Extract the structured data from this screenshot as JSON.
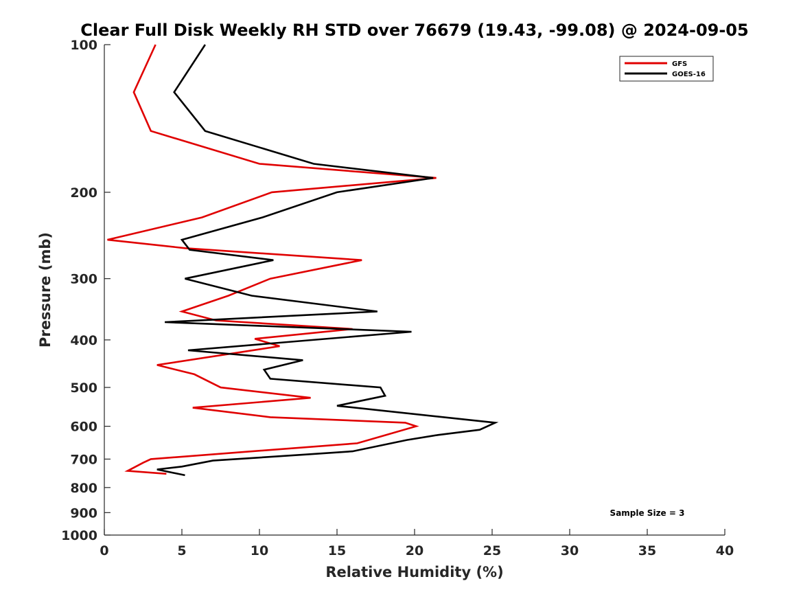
{
  "chart_data": {
    "type": "line",
    "title": "Clear Full Disk Weekly RH STD over 76679 (19.43, -99.08) @ 2024-09-05",
    "xlabel": "Relative Humidity (%)",
    "ylabel": "Pressure (mb)",
    "xlim": [
      0,
      40
    ],
    "ylim": [
      100,
      1000
    ],
    "y_scale": "log",
    "y_reversed": true,
    "x_ticks": [
      0,
      5,
      10,
      15,
      20,
      25,
      30,
      35,
      40
    ],
    "y_ticks": [
      100,
      200,
      300,
      400,
      500,
      600,
      700,
      800,
      900,
      1000
    ],
    "grid": false,
    "legend_position": "top-right",
    "annotation": "Sample Size = 3",
    "series": [
      {
        "name": "GFS",
        "color": "#e00000",
        "points": [
          [
            3.3,
            100
          ],
          [
            1.9,
            125
          ],
          [
            3.0,
            150
          ],
          [
            10.0,
            175
          ],
          [
            21.4,
            187
          ],
          [
            10.8,
            200
          ],
          [
            6.3,
            225
          ],
          [
            0.2,
            250
          ],
          [
            5.2,
            260
          ],
          [
            16.6,
            275
          ],
          [
            10.7,
            300
          ],
          [
            8.0,
            325
          ],
          [
            5.0,
            350
          ],
          [
            7.2,
            365
          ],
          [
            16.0,
            380
          ],
          [
            9.7,
            398
          ],
          [
            11.3,
            412
          ],
          [
            3.4,
            450
          ],
          [
            5.8,
            470
          ],
          [
            7.5,
            500
          ],
          [
            13.3,
            525
          ],
          [
            5.7,
            550
          ],
          [
            10.7,
            575
          ],
          [
            19.4,
            590
          ],
          [
            20.1,
            600
          ],
          [
            16.3,
            650
          ],
          [
            3.0,
            700
          ],
          [
            2.5,
            712
          ],
          [
            1.5,
            740
          ],
          [
            4.0,
            750
          ]
        ]
      },
      {
        "name": "GOES-16",
        "color": "#000000",
        "points": [
          [
            6.5,
            100
          ],
          [
            4.5,
            125
          ],
          [
            6.5,
            150
          ],
          [
            13.5,
            175
          ],
          [
            21.2,
            187
          ],
          [
            15.0,
            200
          ],
          [
            10.2,
            225
          ],
          [
            5.0,
            250
          ],
          [
            5.5,
            262
          ],
          [
            10.9,
            275
          ],
          [
            5.2,
            300
          ],
          [
            9.5,
            325
          ],
          [
            17.6,
            350
          ],
          [
            3.9,
            368
          ],
          [
            19.8,
            385
          ],
          [
            5.4,
            420
          ],
          [
            12.8,
            440
          ],
          [
            10.3,
            460
          ],
          [
            10.7,
            480
          ],
          [
            17.8,
            500
          ],
          [
            18.1,
            520
          ],
          [
            15.0,
            545
          ],
          [
            25.2,
            590
          ],
          [
            24.2,
            610
          ],
          [
            21.5,
            625
          ],
          [
            19.5,
            640
          ],
          [
            16.0,
            675
          ],
          [
            13.0,
            685
          ],
          [
            7.0,
            705
          ],
          [
            5.0,
            725
          ],
          [
            3.4,
            735
          ],
          [
            5.2,
            755
          ]
        ]
      }
    ]
  }
}
